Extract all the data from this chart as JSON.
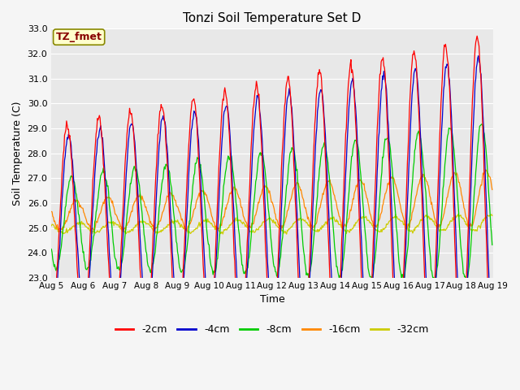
{
  "title": "Tonzi Soil Temperature Set D",
  "xlabel": "Time",
  "ylabel": "Soil Temperature (C)",
  "ylim": [
    23.0,
    33.0
  ],
  "yticks": [
    23.0,
    24.0,
    25.0,
    26.0,
    27.0,
    28.0,
    29.0,
    30.0,
    31.0,
    32.0,
    33.0
  ],
  "xtick_labels": [
    "Aug 5",
    "Aug 6",
    "Aug 7",
    "Aug 8",
    "Aug 9",
    "Aug 10",
    "Aug 11",
    "Aug 12",
    "Aug 13",
    "Aug 14",
    "Aug 15",
    "Aug 16",
    "Aug 17",
    "Aug 18",
    "Aug 19"
  ],
  "legend_labels": [
    "-2cm",
    "-4cm",
    "-8cm",
    "-16cm",
    "-32cm"
  ],
  "colors": [
    "#ff0000",
    "#0000cd",
    "#00cc00",
    "#ff8800",
    "#cccc00"
  ],
  "annotation_text": "TZ_fmet",
  "annotation_facecolor": "#ffffcc",
  "annotation_edgecolor": "#888800",
  "annotation_textcolor": "#880000",
  "plot_bg": "#e8e8e8",
  "fig_bg": "#f5f5f5",
  "grid_color": "#ffffff",
  "n_days": 14,
  "samples_per_day": 48
}
